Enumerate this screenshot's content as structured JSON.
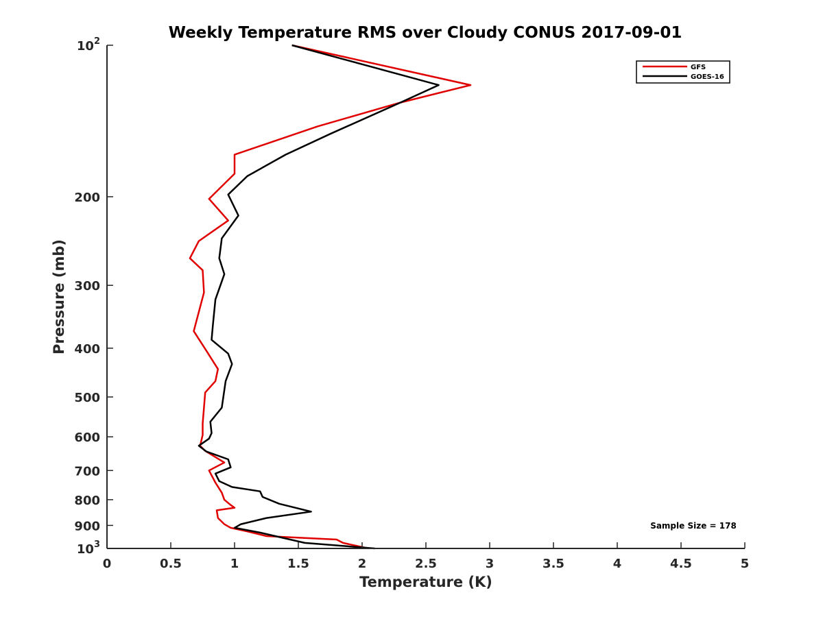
{
  "chart_data": {
    "type": "line",
    "title": "Weekly Temperature RMS over Cloudy CONUS 2017-09-01",
    "xlabel": "Temperature (K)",
    "ylabel": "Pressure (mb)",
    "xlim": [
      0,
      5
    ],
    "ylim": [
      100,
      1000
    ],
    "y_scale": "log",
    "y_reversed": true,
    "x_ticks": [
      0,
      0.5,
      1,
      1.5,
      2,
      2.5,
      3,
      3.5,
      4,
      4.5,
      5
    ],
    "x_tick_labels": [
      "0",
      "0.5",
      "1",
      "1.5",
      "2",
      "2.5",
      "3",
      "3.5",
      "4",
      "4.5",
      "5"
    ],
    "y_ticks": [
      100,
      200,
      300,
      400,
      500,
      600,
      700,
      800,
      900,
      1000
    ],
    "y_tick_labels": [
      {
        "base": "10",
        "sup": "2"
      },
      {
        "base": "200",
        "sup": ""
      },
      {
        "base": "300",
        "sup": ""
      },
      {
        "base": "400",
        "sup": ""
      },
      {
        "base": "500",
        "sup": ""
      },
      {
        "base": "600",
        "sup": ""
      },
      {
        "base": "700",
        "sup": ""
      },
      {
        "base": "800",
        "sup": ""
      },
      {
        "base": "900",
        "sup": ""
      },
      {
        "base": "10",
        "sup": "3"
      }
    ],
    "grid": false,
    "legend_position": "top-right",
    "annotation": "Sample Size = 178",
    "series": [
      {
        "name": "GFS",
        "color": "#e00000",
        "points": [
          [
            1.45,
            100
          ],
          [
            2.85,
            120
          ],
          [
            2.3,
            130
          ],
          [
            1.65,
            145
          ],
          [
            1.0,
            165
          ],
          [
            1.0,
            180
          ],
          [
            0.8,
            202
          ],
          [
            0.95,
            223
          ],
          [
            0.72,
            245
          ],
          [
            0.65,
            265
          ],
          [
            0.75,
            280
          ],
          [
            0.76,
            310
          ],
          [
            0.68,
            370
          ],
          [
            0.78,
            405
          ],
          [
            0.87,
            440
          ],
          [
            0.85,
            465
          ],
          [
            0.77,
            490
          ],
          [
            0.76,
            525
          ],
          [
            0.75,
            565
          ],
          [
            0.75,
            595
          ],
          [
            0.73,
            625
          ],
          [
            0.77,
            640
          ],
          [
            0.92,
            675
          ],
          [
            0.8,
            700
          ],
          [
            0.85,
            740
          ],
          [
            0.9,
            775
          ],
          [
            0.92,
            800
          ],
          [
            0.97,
            820
          ],
          [
            1.0,
            830
          ],
          [
            0.86,
            840
          ],
          [
            0.87,
            870
          ],
          [
            0.92,
            895
          ],
          [
            0.97,
            910
          ],
          [
            1.1,
            925
          ],
          [
            1.25,
            945
          ],
          [
            1.8,
            960
          ],
          [
            1.85,
            975
          ],
          [
            2.05,
            1000
          ]
        ]
      },
      {
        "name": "GOES-16",
        "color": "#000000",
        "points": [
          [
            1.45,
            100
          ],
          [
            2.6,
            120
          ],
          [
            2.3,
            130
          ],
          [
            1.75,
            150
          ],
          [
            1.4,
            165
          ],
          [
            1.1,
            182
          ],
          [
            0.95,
            198
          ],
          [
            1.03,
            218
          ],
          [
            0.9,
            242
          ],
          [
            0.88,
            265
          ],
          [
            0.92,
            285
          ],
          [
            0.85,
            320
          ],
          [
            0.83,
            360
          ],
          [
            0.82,
            385
          ],
          [
            0.95,
            410
          ],
          [
            0.98,
            430
          ],
          [
            0.93,
            465
          ],
          [
            0.9,
            525
          ],
          [
            0.81,
            560
          ],
          [
            0.82,
            590
          ],
          [
            0.8,
            605
          ],
          [
            0.72,
            625
          ],
          [
            0.78,
            642
          ],
          [
            0.95,
            665
          ],
          [
            0.97,
            690
          ],
          [
            0.85,
            710
          ],
          [
            0.88,
            735
          ],
          [
            0.98,
            755
          ],
          [
            1.2,
            770
          ],
          [
            1.22,
            790
          ],
          [
            1.35,
            815
          ],
          [
            1.6,
            845
          ],
          [
            1.25,
            870
          ],
          [
            1.05,
            895
          ],
          [
            1.0,
            910
          ],
          [
            1.2,
            930
          ],
          [
            1.55,
            975
          ],
          [
            2.1,
            1000
          ]
        ]
      }
    ]
  }
}
